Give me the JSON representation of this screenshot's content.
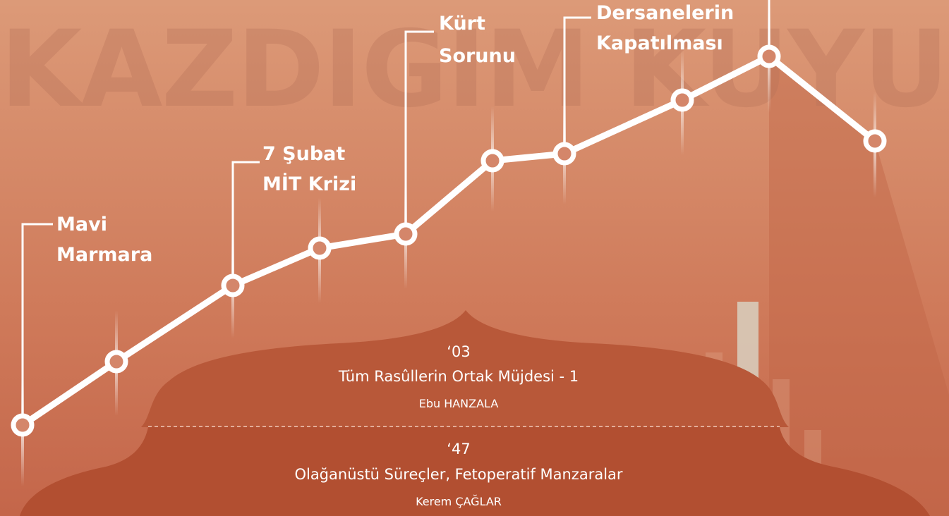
{
  "watermark": "KAZDIGIM KUYU",
  "events": [
    [
      "Mavi",
      "Marmara"
    ],
    [
      "7 Şubat",
      "MİT Krizi"
    ],
    [
      "Kürt",
      "Sorunu"
    ],
    [
      "Dersanelerin",
      "Kapatılması"
    ]
  ],
  "articles": [
    {
      "issue": "‘03",
      "title": "Tüm Rasûllerin Ortak Müjdesi - 1",
      "author": "Ebu HANZALA"
    },
    {
      "issue": "‘47",
      "title": "Olağanüstü Süreçler, Fetoperatif Manzaralar",
      "author": "Kerem ÇAĞLAR"
    }
  ]
}
